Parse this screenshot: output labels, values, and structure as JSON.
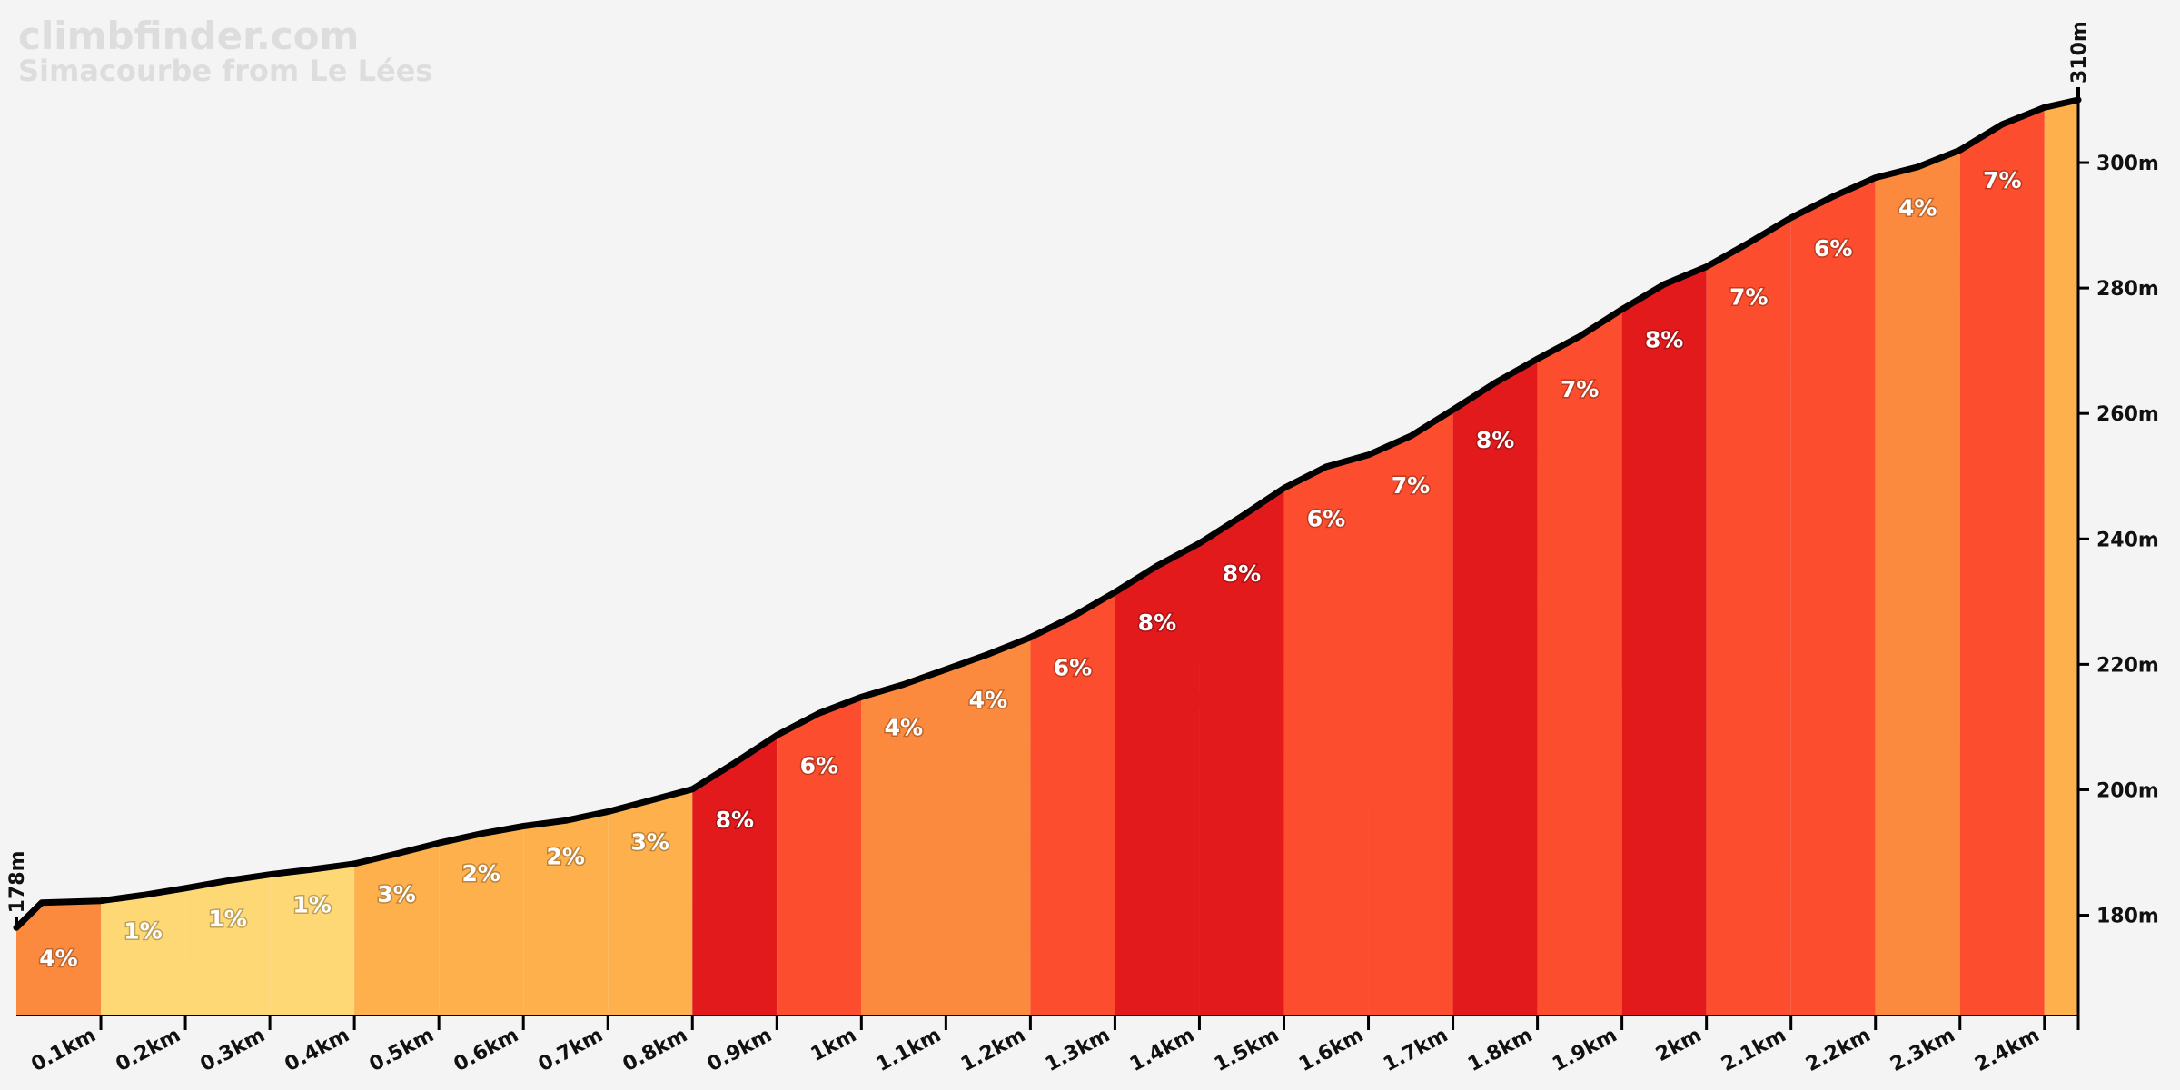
{
  "brand": {
    "site": "climbfinder.com",
    "climb_name": "Simacourbe from Le Lées"
  },
  "chart_data": {
    "type": "area",
    "title": "Simacourbe from Le Lées",
    "xlabel": "",
    "ylabel": "",
    "x_unit": "km",
    "y_unit": "m",
    "xlim": [
      0,
      2.44
    ],
    "ylim": [
      164,
      310
    ],
    "start_elevation_label": "178m",
    "end_elevation_label": "310m",
    "x_ticks": [
      {
        "value": 0.1,
        "label": "0.1km"
      },
      {
        "value": 0.2,
        "label": "0.2km"
      },
      {
        "value": 0.3,
        "label": "0.3km"
      },
      {
        "value": 0.4,
        "label": "0.4km"
      },
      {
        "value": 0.5,
        "label": "0.5km"
      },
      {
        "value": 0.6,
        "label": "0.6km"
      },
      {
        "value": 0.7,
        "label": "0.7km"
      },
      {
        "value": 0.8,
        "label": "0.8km"
      },
      {
        "value": 0.9,
        "label": "0.9km"
      },
      {
        "value": 1.0,
        "label": "1km"
      },
      {
        "value": 1.1,
        "label": "1.1km"
      },
      {
        "value": 1.2,
        "label": "1.2km"
      },
      {
        "value": 1.3,
        "label": "1.3km"
      },
      {
        "value": 1.4,
        "label": "1.4km"
      },
      {
        "value": 1.5,
        "label": "1.5km"
      },
      {
        "value": 1.6,
        "label": "1.6km"
      },
      {
        "value": 1.7,
        "label": "1.7km"
      },
      {
        "value": 1.8,
        "label": "1.8km"
      },
      {
        "value": 1.9,
        "label": "1.9km"
      },
      {
        "value": 2.0,
        "label": "2km"
      },
      {
        "value": 2.1,
        "label": "2.1km"
      },
      {
        "value": 2.2,
        "label": "2.2km"
      },
      {
        "value": 2.3,
        "label": "2.3km"
      },
      {
        "value": 2.4,
        "label": "2.4km"
      }
    ],
    "y_ticks": [
      {
        "value": 180,
        "label": "180m"
      },
      {
        "value": 200,
        "label": "200m"
      },
      {
        "value": 220,
        "label": "220m"
      },
      {
        "value": 240,
        "label": "240m"
      },
      {
        "value": 260,
        "label": "260m"
      },
      {
        "value": 280,
        "label": "280m"
      },
      {
        "value": 300,
        "label": "300m"
      }
    ],
    "profile": {
      "x": [
        0,
        0.03,
        0.1,
        0.15,
        0.2,
        0.25,
        0.3,
        0.35,
        0.4,
        0.45,
        0.5,
        0.55,
        0.6,
        0.65,
        0.7,
        0.75,
        0.8,
        0.85,
        0.9,
        0.95,
        1.0,
        1.05,
        1.1,
        1.15,
        1.2,
        1.25,
        1.3,
        1.35,
        1.4,
        1.45,
        1.5,
        1.55,
        1.6,
        1.65,
        1.7,
        1.75,
        1.8,
        1.85,
        1.9,
        1.95,
        2.0,
        2.05,
        2.1,
        2.15,
        2.2,
        2.25,
        2.3,
        2.35,
        2.4,
        2.44
      ],
      "elevation": [
        178,
        182,
        182.3,
        183.2,
        184.3,
        185.5,
        186.5,
        187.3,
        188.2,
        189.8,
        191.5,
        193,
        194.2,
        195.1,
        196.5,
        198.3,
        200.1,
        204.3,
        208.7,
        212.2,
        214.8,
        216.8,
        219.2,
        221.6,
        224.3,
        227.6,
        231.5,
        235.7,
        239.3,
        243.6,
        248.1,
        251.5,
        253.4,
        256.4,
        260.6,
        264.9,
        268.7,
        272.3,
        276.6,
        280.6,
        283.4,
        287.2,
        291.2,
        294.6,
        297.6,
        299.3,
        302,
        306.1,
        308.8,
        310
      ]
    },
    "segments": [
      {
        "start": 0.0,
        "end": 0.1,
        "grade": "4%",
        "color": "#fc8a3e"
      },
      {
        "start": 0.1,
        "end": 0.2,
        "grade": "1%",
        "color": "#ffd876"
      },
      {
        "start": 0.2,
        "end": 0.3,
        "grade": "1%",
        "color": "#ffd876"
      },
      {
        "start": 0.3,
        "end": 0.4,
        "grade": "1%",
        "color": "#ffd876"
      },
      {
        "start": 0.4,
        "end": 0.5,
        "grade": "3%",
        "color": "#feb04c"
      },
      {
        "start": 0.5,
        "end": 0.6,
        "grade": "2%",
        "color": "#feb04c"
      },
      {
        "start": 0.6,
        "end": 0.7,
        "grade": "2%",
        "color": "#feb04c"
      },
      {
        "start": 0.7,
        "end": 0.8,
        "grade": "3%",
        "color": "#feb04c"
      },
      {
        "start": 0.8,
        "end": 0.9,
        "grade": "8%",
        "color": "#e31a1c"
      },
      {
        "start": 0.9,
        "end": 1.0,
        "grade": "6%",
        "color": "#fc4e2e"
      },
      {
        "start": 1.0,
        "end": 1.1,
        "grade": "4%",
        "color": "#fc8a3e"
      },
      {
        "start": 1.1,
        "end": 1.2,
        "grade": "4%",
        "color": "#fc8a3e"
      },
      {
        "start": 1.2,
        "end": 1.3,
        "grade": "6%",
        "color": "#fc4e2e"
      },
      {
        "start": 1.3,
        "end": 1.4,
        "grade": "8%",
        "color": "#e31a1c"
      },
      {
        "start": 1.4,
        "end": 1.5,
        "grade": "8%",
        "color": "#e31a1c"
      },
      {
        "start": 1.5,
        "end": 1.6,
        "grade": "6%",
        "color": "#fc4e2e"
      },
      {
        "start": 1.6,
        "end": 1.7,
        "grade": "7%",
        "color": "#fc4e2e"
      },
      {
        "start": 1.7,
        "end": 1.8,
        "grade": "8%",
        "color": "#e31a1c"
      },
      {
        "start": 1.8,
        "end": 1.9,
        "grade": "7%",
        "color": "#fc4e2e"
      },
      {
        "start": 1.9,
        "end": 2.0,
        "grade": "8%",
        "color": "#e31a1c"
      },
      {
        "start": 2.0,
        "end": 2.1,
        "grade": "7%",
        "color": "#fc4e2e"
      },
      {
        "start": 2.1,
        "end": 2.2,
        "grade": "6%",
        "color": "#fc4e2e"
      },
      {
        "start": 2.2,
        "end": 2.3,
        "grade": "4%",
        "color": "#fc8a3e"
      },
      {
        "start": 2.3,
        "end": 2.4,
        "grade": "7%",
        "color": "#fc4e2e"
      },
      {
        "start": 2.4,
        "end": 2.44,
        "grade": "",
        "color": "#feb04c"
      }
    ],
    "legend": "none",
    "grid": false
  }
}
